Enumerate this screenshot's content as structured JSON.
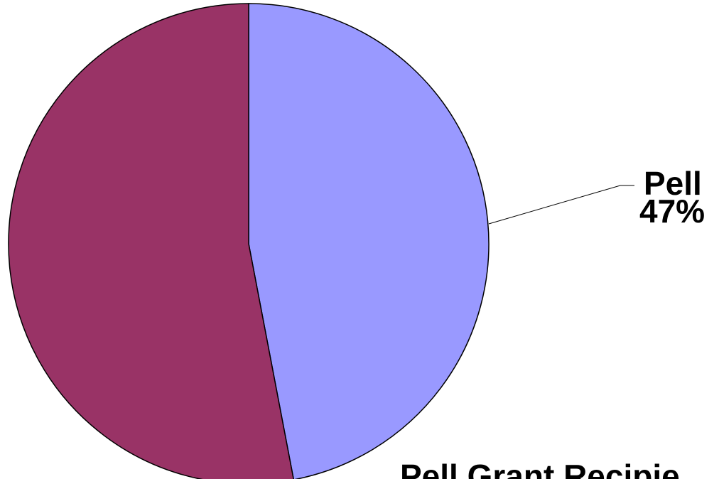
{
  "chart_data": {
    "type": "pie",
    "slices": [
      {
        "label": "Pell",
        "value": 47,
        "value_label": "47%",
        "color": "#9999ff"
      },
      {
        "label": "",
        "value": 53,
        "value_label": "",
        "color": "#993366"
      }
    ],
    "caption": "Pell Grant Recipie",
    "start": "12 o'clock",
    "direction": "clockwise"
  }
}
